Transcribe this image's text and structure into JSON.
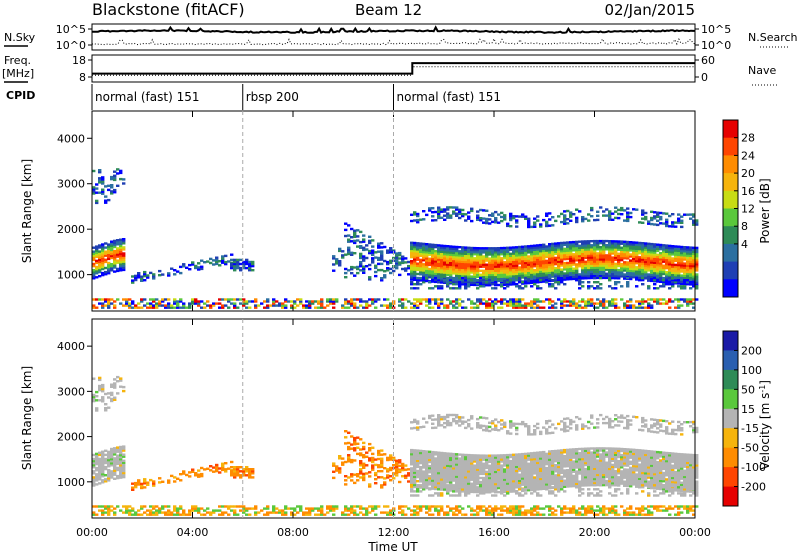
{
  "header": {
    "radar": "Blackstone (fitACF)",
    "beam": "Beam 12",
    "date": "02/Jan/2015"
  },
  "labels": {
    "nsky": "N.Sky",
    "nsearch": "N.Search",
    "freq_line1": "Freq.",
    "freq_line2": "[MHz]",
    "nave": "Nave",
    "cpid": "CPID",
    "slant_range": "Slant Range [km]",
    "x_axis": "Time UT",
    "power_cbar": "Power [dB]",
    "velocity_cbar_main": "Velocity [m s",
    "velocity_cbar_sup": "-1",
    "velocity_cbar_end": "]"
  },
  "chart_data": [
    {
      "type": "line",
      "name": "noise",
      "left_axis": {
        "label": "N.Sky",
        "ticks": [
          "10^5",
          "10^0"
        ]
      },
      "right_axis": {
        "label": "N.Search",
        "ticks": [
          "10^5",
          "10^0"
        ]
      }
    },
    {
      "type": "line",
      "name": "frequency-nave",
      "left_axis": {
        "label": "Freq. [MHz]",
        "ticks": [
          "18",
          "8"
        ],
        "ylim": [
          8,
          18
        ]
      },
      "right_axis": {
        "label": "Nave",
        "ticks": [
          "60",
          "0"
        ],
        "ylim": [
          0,
          60
        ]
      },
      "frequency_mhz": {
        "x": [
          "00:00",
          "12:45",
          "12:45",
          "24:00"
        ],
        "y": [
          10,
          10,
          16.2,
          16.2
        ]
      },
      "nave": {
        "x": [
          "00:00",
          "12:45",
          "12:45",
          "24:00"
        ],
        "y": [
          6,
          6,
          36,
          36
        ]
      }
    },
    {
      "type": "table",
      "name": "cpid",
      "segments": [
        {
          "label": "normal (fast) 151",
          "start": "00:00",
          "end": "06:00"
        },
        {
          "label": "rbsp 200",
          "start": "06:00",
          "end": "12:00"
        },
        {
          "label": "normal (fast) 151",
          "start": "12:00",
          "end": "24:00"
        }
      ]
    },
    {
      "type": "heatmap",
      "name": "power",
      "ylabel": "Slant Range [km]",
      "ylim": [
        200,
        4600
      ],
      "y_ticks": [
        1000,
        2000,
        3000,
        4000
      ],
      "x_ticks": [
        "00:00",
        "04:00",
        "08:00",
        "12:00",
        "16:00",
        "20:00",
        "00:00"
      ],
      "xlabel": "",
      "colorbar": {
        "label": "Power [dB]",
        "ticks": [
          28,
          24,
          20,
          16,
          12,
          8,
          4
        ],
        "colors": [
          "#e60000",
          "#ff4500",
          "#ff8c00",
          "#f6b40c",
          "#c8dc14",
          "#5ac83c",
          "#2e8b57",
          "#2b6fa0",
          "#1f3fb4",
          "#0000ff"
        ]
      }
    },
    {
      "type": "heatmap",
      "name": "velocity",
      "ylabel": "Slant Range [km]",
      "ylim": [
        200,
        4600
      ],
      "y_ticks": [
        1000,
        2000,
        3000,
        4000
      ],
      "x_ticks": [
        "00:00",
        "04:00",
        "08:00",
        "12:00",
        "16:00",
        "20:00",
        "00:00"
      ],
      "xlabel": "Time UT",
      "colorbar": {
        "label": "Velocity [m s-1]",
        "ticks": [
          200,
          100,
          50,
          15,
          -15,
          -50,
          -100,
          -200
        ],
        "colors": [
          "#1a1aa6",
          "#2a5fb0",
          "#2e8b57",
          "#5ac83c",
          "#b4b4b4",
          "#f6b40c",
          "#ff8c00",
          "#ff4500",
          "#e60000"
        ]
      }
    }
  ]
}
